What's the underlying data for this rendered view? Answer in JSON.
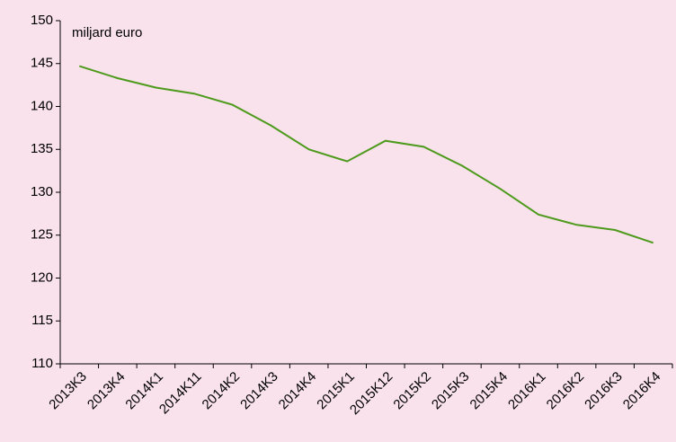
{
  "chart_data": {
    "type": "line",
    "unit_label": "miljard euro",
    "categories": [
      "2013K3",
      "2013K4",
      "2014K1",
      "2014K11",
      "2014K2",
      "2014K3",
      "2014K4",
      "2015K1",
      "2015K12",
      "2015K2",
      "2015K3",
      "2015K4",
      "2016K1",
      "2016K2",
      "2016K3",
      "2016K4"
    ],
    "values": [
      144.7,
      143.3,
      142.2,
      141.5,
      140.2,
      137.8,
      135.0,
      133.6,
      136.0,
      135.3,
      133.1,
      130.4,
      127.4,
      126.2,
      125.6,
      124.1
    ],
    "color": "#4d9a1c",
    "ylim": [
      110,
      150
    ],
    "yticks": [
      110,
      115,
      120,
      125,
      130,
      135,
      140,
      145,
      150
    ],
    "grid": false
  }
}
